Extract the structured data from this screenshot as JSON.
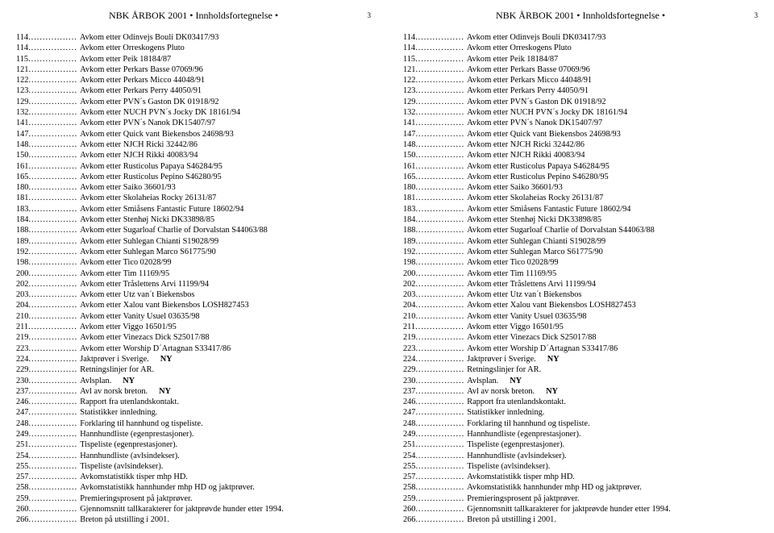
{
  "header": {
    "title": "NBK ÅRBOK 2001 • Innholdsfortegnelse •",
    "page_number": "3"
  },
  "toc": [
    {
      "page": "114",
      "desc": "Avkom etter Odinvejs Bouli DK03417/93"
    },
    {
      "page": "114",
      "desc": "Avkom etter Orreskogens Pluto"
    },
    {
      "page": "115",
      "desc": "Avkom etter Peik 18184/87"
    },
    {
      "page": "121",
      "desc": "Avkom etter Perkars Basse 07069/96"
    },
    {
      "page": "122",
      "desc": "Avkom etter Perkars Micco 44048/91"
    },
    {
      "page": "123",
      "desc": "Avkom etter Perkars Perry 44050/91"
    },
    {
      "page": "129",
      "desc": "Avkom etter PVN´s Gaston DK 01918/92"
    },
    {
      "page": "132",
      "desc": "Avkom etter NUCH PVN´s Jocky DK 18161/94"
    },
    {
      "page": "141",
      "desc": "Avkom etter PVN´s Nanok DK15407/97"
    },
    {
      "page": "147",
      "desc": "Avkom etter Quick vant Biekensbos 24698/93"
    },
    {
      "page": "148",
      "desc": "Avkom etter NJCH Ricki 32442/86"
    },
    {
      "page": "150",
      "desc": "Avkom etter NJCH Rikki 40083/94"
    },
    {
      "page": "161",
      "desc": "Avkom etter Rusticolus Papaya S46284/95"
    },
    {
      "page": "165",
      "desc": "Avkom etter Rusticolus Pepino S46280/95"
    },
    {
      "page": "180",
      "desc": "Avkom etter Saiko 36601/93"
    },
    {
      "page": "181",
      "desc": "Avkom etter Skolaheias Rocky 26131/87"
    },
    {
      "page": "183",
      "desc": "Avkom etter Smiåsens Fantastic Future 18602/94"
    },
    {
      "page": "184",
      "desc": "Avkom etter Stenhøj Nicki DK33898/85"
    },
    {
      "page": "188",
      "desc": "Avkom etter Sugarloaf Charlie of Dorvalstan S44063/88"
    },
    {
      "page": "189",
      "desc": "Avkom etter Suhlegan Chianti S19028/99"
    },
    {
      "page": "192",
      "desc": "Avkom etter Suhlegan Marco S61775/90"
    },
    {
      "page": "198",
      "desc": "Avkom etter Tico 02028/99"
    },
    {
      "page": "200",
      "desc": "Avkom etter Tim 11169/95"
    },
    {
      "page": "202",
      "desc": "Avkom etter Tråslettens Arvi 11199/94"
    },
    {
      "page": "203",
      "desc": "Avkom etter Utz van´t Biekensbos"
    },
    {
      "page": "204",
      "desc": "Avkom etter Xalou vant Biekensbos LOSH827453"
    },
    {
      "page": "210",
      "desc": "Avkom etter Vanity Usuel 03635/98"
    },
    {
      "page": "211",
      "desc": "Avkom etter Viggo 16501/95"
    },
    {
      "page": "219",
      "desc": "Avkom etter Vinezacs Dick S25017/88"
    },
    {
      "page": "223",
      "desc": "Avkom etter Worship D´Artagnan S33417/86"
    },
    {
      "page": "224",
      "desc": "Jaktprøver i Sverige.",
      "tag": "NY"
    },
    {
      "page": "229",
      "desc": "Retningslinjer for AR."
    },
    {
      "page": "230",
      "desc": "Avlsplan.",
      "tag": "NY"
    },
    {
      "page": "237",
      "desc": "Avl av norsk breton.",
      "tag": "NY"
    },
    {
      "page": "246",
      "desc": "Rapport fra utenlandskontakt."
    },
    {
      "page": "247",
      "desc": "Statistikker innledning."
    },
    {
      "page": "248",
      "desc": "Forklaring til hannhund og tispeliste."
    },
    {
      "page": "249",
      "desc": "Hannhundliste  (egenprestasjoner)."
    },
    {
      "page": "251",
      "desc": "Tispeliste (egenprestasjoner)."
    },
    {
      "page": "254",
      "desc": "Hannhundliste (avlsindekser)."
    },
    {
      "page": "255",
      "desc": "Tispeliste (avlsindekser)."
    },
    {
      "page": "257",
      "desc": "Avkomstatistikk tisper mhp HD."
    },
    {
      "page": "258",
      "desc": "Avkomstatistikk hannhunder mhp HD og jaktprøver."
    },
    {
      "page": "259",
      "desc": "Premieringsprosent på jaktprøver."
    },
    {
      "page": "260",
      "desc": "Gjennomsnitt tallkarakterer for jaktprøvde hunder etter 1994."
    },
    {
      "page": "266",
      "desc": "Breton på utstilling i 2001."
    }
  ],
  "leader_dots": "................."
}
